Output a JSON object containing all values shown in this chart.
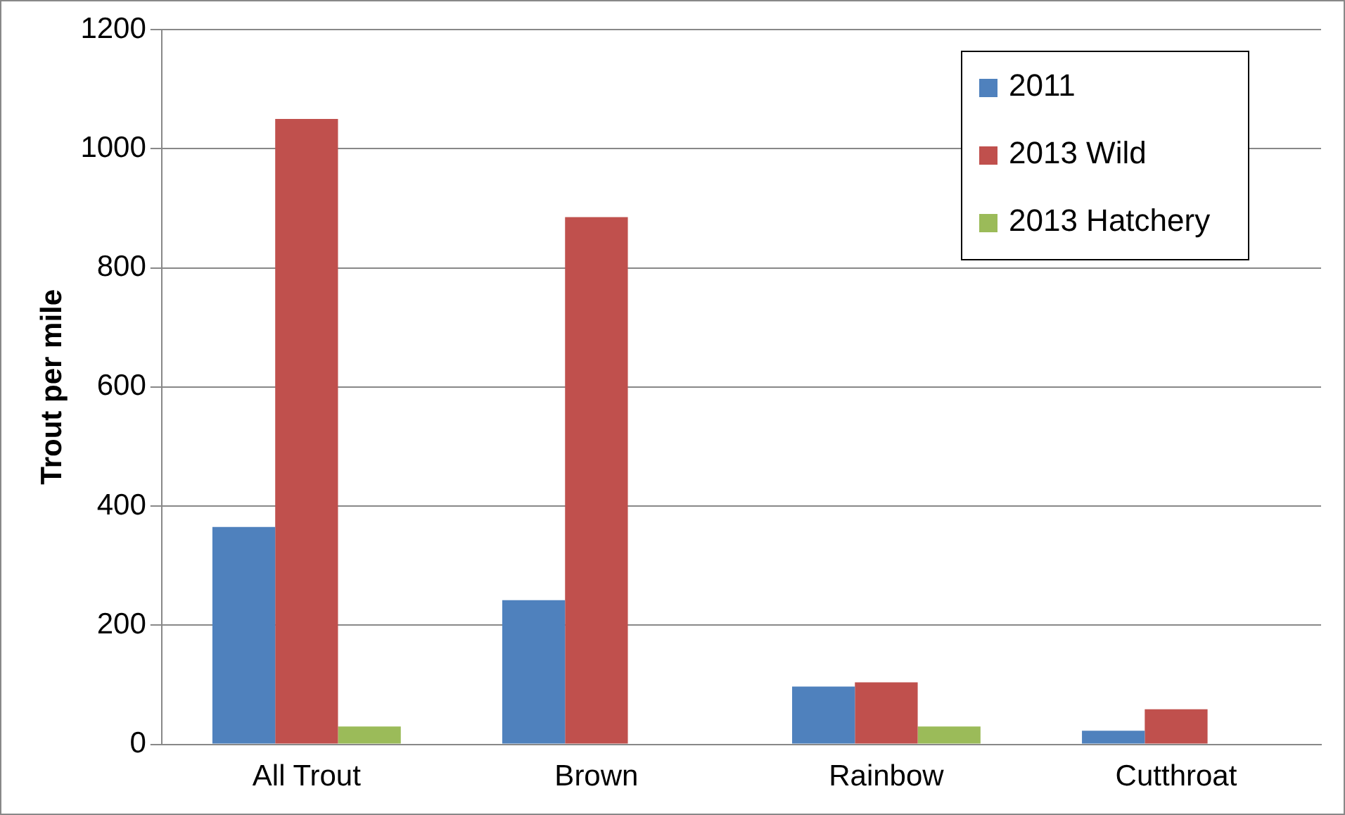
{
  "chart_data": {
    "type": "bar",
    "ylabel": "Trout per mile",
    "categories": [
      "All Trout",
      "Brown",
      "Rainbow",
      "Cutthroat"
    ],
    "series": [
      {
        "name": "2011",
        "color": "#4f81bd",
        "values": [
          365,
          242,
          97,
          23
        ]
      },
      {
        "name": "2013 Wild",
        "color": "#c0504d",
        "values": [
          1050,
          885,
          104,
          59
        ]
      },
      {
        "name": "2013 Hatchery",
        "color": "#9bbb59",
        "values": [
          30,
          0,
          30,
          0
        ]
      }
    ],
    "ylim": [
      0,
      1200
    ],
    "yticks": [
      0,
      200,
      400,
      600,
      800,
      1000,
      1200
    ],
    "grid": "y",
    "legend": "top right"
  }
}
